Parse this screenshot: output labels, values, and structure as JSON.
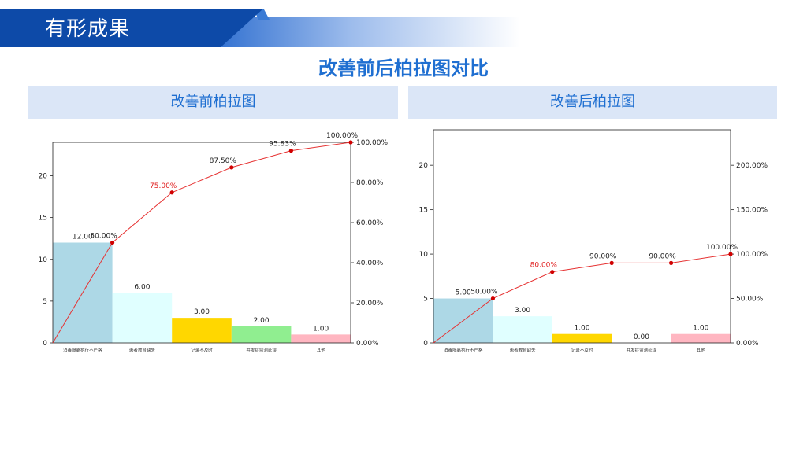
{
  "header": {
    "title": "有形成果"
  },
  "page_title": "改善前后柏拉图对比",
  "panels": [
    {
      "title": "改善前柏拉图"
    },
    {
      "title": "改善后柏拉图"
    }
  ],
  "colors": {
    "header_blue": "#0d4aa8",
    "title_blue": "#1f6fd1",
    "panel_bg": "#dbe6f7",
    "line": "#e63232",
    "bars": [
      "#add8e6",
      "#e0ffff",
      "#ffd700",
      "#90ee90",
      "#ffb6c1"
    ]
  },
  "chart_data": [
    {
      "type": "bar",
      "title": "改善前柏拉图",
      "categories": [
        "消毒隔离执行不严格",
        "患者教育缺失",
        "记录不及时",
        "并发症监测延误",
        "其他"
      ],
      "values": [
        12,
        6,
        3,
        2,
        1
      ],
      "value_labels": [
        "12.00",
        "6.00",
        "3.00",
        "2.00",
        "1.00"
      ],
      "cumulative": [
        50.0,
        75.0,
        87.5,
        95.83,
        100.0
      ],
      "cumulative_labels": [
        "50.00%",
        "75.00%",
        "87.50%",
        "95.83%",
        "100.00%"
      ],
      "highlight_index": 1,
      "ylim": [
        0,
        24
      ],
      "yticks": [
        0,
        5,
        10,
        15,
        20
      ],
      "y2lim": [
        0,
        100
      ],
      "y2ticks": [
        "0.00%",
        "20.00%",
        "40.00%",
        "60.00%",
        "80.00%",
        "100.00%"
      ],
      "y2tick_values": [
        0,
        20,
        40,
        60,
        80,
        100
      ]
    },
    {
      "type": "bar",
      "title": "改善后柏拉图",
      "categories": [
        "消毒隔离执行不严格",
        "患者教育缺失",
        "记录不及时",
        "并发症监测延误",
        "其他"
      ],
      "values": [
        5,
        3,
        1,
        0,
        1
      ],
      "value_labels": [
        "5.00",
        "3.00",
        "1.00",
        "0.00",
        "1.00"
      ],
      "cumulative": [
        50.0,
        80.0,
        90.0,
        90.0,
        100.0
      ],
      "cumulative_labels": [
        "50.00%",
        "80.00%",
        "90.00%",
        "90.00%",
        "100.00%"
      ],
      "highlight_index": 1,
      "ylim": [
        0,
        24
      ],
      "yticks": [
        0,
        5,
        10,
        15,
        20
      ],
      "y2lim": [
        0,
        240
      ],
      "y2ticks": [
        "0.00%",
        "50.00%",
        "100.00%",
        "150.00%",
        "200.00%"
      ],
      "y2tick_values": [
        0,
        50,
        100,
        150,
        200
      ]
    }
  ]
}
